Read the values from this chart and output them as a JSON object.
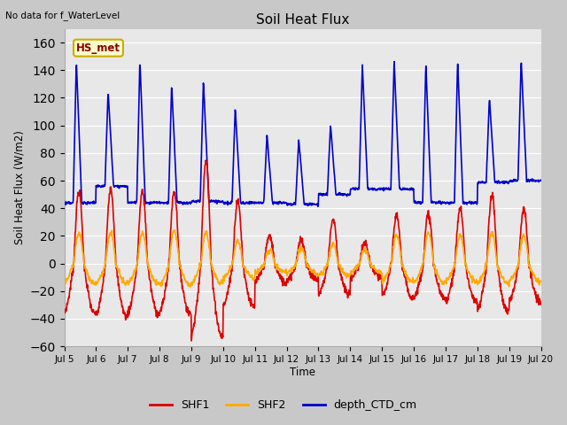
{
  "title": "Soil Heat Flux",
  "top_left_text": "No data for f_WaterLevel",
  "ylabel": "Soil Heat Flux (W/m2)",
  "xlabel": "Time",
  "ylim": [
    -60,
    170
  ],
  "yticks": [
    -60,
    -40,
    -20,
    0,
    20,
    40,
    60,
    80,
    100,
    120,
    140,
    160
  ],
  "xtick_labels": [
    "Jul 5",
    "Jul 6",
    "Jul 7",
    "Jul 8",
    "Jul 9",
    "Jul 10",
    "Jul 11",
    "Jul 12",
    "Jul 13",
    "Jul 14",
    "Jul 15",
    "Jul 16",
    "Jul 17",
    "Jul 18",
    "Jul 19",
    "Jul 20"
  ],
  "legend_labels": [
    "SHF1",
    "SHF2",
    "depth_CTD_cm"
  ],
  "legend_colors": [
    "#dd0000",
    "#ffaa00",
    "#0000cc"
  ],
  "annotation_text": "HS_met",
  "annotation_color": "#880000",
  "annotation_bg": "#ffffcc",
  "annotation_edge": "#ccaa00",
  "fig_bg": "#c8c8c8",
  "plot_bg": "#e8e8e8",
  "grid_color": "#ffffff",
  "line_width": 1.2,
  "n_days": 15,
  "points_per_day": 96
}
